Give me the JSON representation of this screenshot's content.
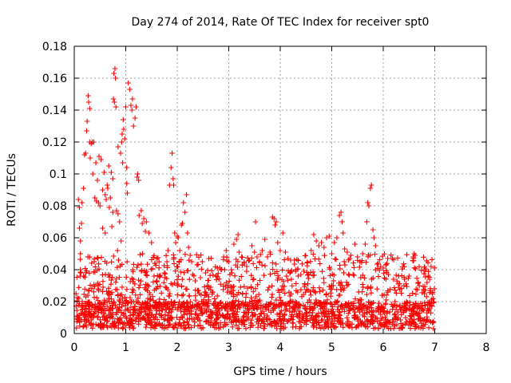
{
  "chart_data": {
    "type": "scatter",
    "title": "Day 274 of 2014, Rate Of TEC Index for receiver spt0",
    "xlabel": "GPS time / hours",
    "ylabel": "ROTI / TECUs",
    "xlim": [
      0,
      8
    ],
    "ylim": [
      0,
      0.18
    ],
    "xticks": [
      0,
      1,
      2,
      3,
      4,
      5,
      6,
      7,
      8
    ],
    "xtick_labels": [
      "0",
      "1",
      "2",
      "3",
      "4",
      "5",
      "6",
      "7",
      "8"
    ],
    "yticks": [
      0,
      0.02,
      0.04,
      0.06,
      0.08,
      0.1,
      0.12,
      0.14,
      0.16,
      0.18
    ],
    "ytick_labels": [
      "0",
      "0.02",
      "0.04",
      "0.06",
      "0.08",
      "0.1",
      "0.12",
      "0.14",
      "0.16",
      "0.18"
    ],
    "grid": true,
    "marker": "+",
    "series": [
      {
        "name": "ROTI",
        "color": "#ff0000",
        "points": [
          [
            0.05,
            0.011
          ],
          [
            0.08,
            0.084
          ],
          [
            0.1,
            0.079
          ],
          [
            0.1,
            0.066
          ],
          [
            0.12,
            0.058
          ],
          [
            0.12,
            0.05
          ],
          [
            0.12,
            0.04
          ],
          [
            0.13,
            0.038
          ],
          [
            0.14,
            0.069
          ],
          [
            0.15,
            0.082
          ],
          [
            0.18,
            0.091
          ],
          [
            0.18,
            0.036
          ],
          [
            0.2,
            0.112
          ],
          [
            0.22,
            0.113
          ],
          [
            0.24,
            0.127
          ],
          [
            0.25,
            0.133
          ],
          [
            0.27,
            0.149
          ],
          [
            0.28,
            0.145
          ],
          [
            0.3,
            0.12
          ],
          [
            0.3,
            0.141
          ],
          [
            0.31,
            0.11
          ],
          [
            0.33,
            0.119
          ],
          [
            0.35,
            0.12
          ],
          [
            0.36,
            0.1
          ],
          [
            0.38,
            0.12
          ],
          [
            0.4,
            0.085
          ],
          [
            0.42,
            0.107
          ],
          [
            0.43,
            0.083
          ],
          [
            0.45,
            0.096
          ],
          [
            0.47,
            0.082
          ],
          [
            0.48,
            0.111
          ],
          [
            0.5,
            0.08
          ],
          [
            0.52,
            0.109
          ],
          [
            0.55,
            0.066
          ],
          [
            0.55,
            0.09
          ],
          [
            0.58,
            0.101
          ],
          [
            0.6,
            0.087
          ],
          [
            0.6,
            0.063
          ],
          [
            0.62,
            0.084
          ],
          [
            0.64,
            0.093
          ],
          [
            0.65,
            0.091
          ],
          [
            0.67,
            0.105
          ],
          [
            0.68,
            0.079
          ],
          [
            0.7,
            0.085
          ],
          [
            0.72,
            0.101
          ],
          [
            0.73,
            0.067
          ],
          [
            0.75,
            0.097
          ],
          [
            0.75,
            0.076
          ],
          [
            0.76,
            0.147
          ],
          [
            0.77,
            0.163
          ],
          [
            0.78,
            0.145
          ],
          [
            0.79,
            0.166
          ],
          [
            0.8,
            0.16
          ],
          [
            0.81,
            0.142
          ],
          [
            0.82,
            0.077
          ],
          [
            0.84,
            0.052
          ],
          [
            0.85,
            0.075
          ],
          [
            0.85,
            0.117
          ],
          [
            0.86,
            0.046
          ],
          [
            0.88,
            0.07
          ],
          [
            0.9,
            0.113
          ],
          [
            0.91,
            0.058
          ],
          [
            0.92,
            0.12
          ],
          [
            0.93,
            0.125
          ],
          [
            0.94,
            0.107
          ],
          [
            0.95,
            0.134
          ],
          [
            0.96,
            0.128
          ],
          [
            0.98,
            0.122
          ],
          [
            1.0,
            0.142
          ],
          [
            1.02,
            0.104
          ],
          [
            1.02,
            0.094
          ],
          [
            1.03,
            0.088
          ],
          [
            1.05,
            0.157
          ],
          [
            1.08,
            0.153
          ],
          [
            1.1,
            0.143
          ],
          [
            1.12,
            0.14
          ],
          [
            1.13,
            0.147
          ],
          [
            1.15,
            0.13
          ],
          [
            1.18,
            0.135
          ],
          [
            1.2,
            0.142
          ],
          [
            1.22,
            0.098
          ],
          [
            1.23,
            0.1
          ],
          [
            1.25,
            0.096
          ],
          [
            1.26,
            0.074
          ],
          [
            1.3,
            0.077
          ],
          [
            1.32,
            0.069
          ],
          [
            1.35,
            0.072
          ],
          [
            1.38,
            0.064
          ],
          [
            1.4,
            0.07
          ],
          [
            1.45,
            0.063
          ],
          [
            1.5,
            0.057
          ],
          [
            1.55,
            0.036
          ],
          [
            1.6,
            0.047
          ],
          [
            1.65,
            0.036
          ],
          [
            1.75,
            0.038
          ],
          [
            1.8,
            0.045
          ],
          [
            1.82,
            0.052
          ],
          [
            1.85,
            0.093
          ],
          [
            1.88,
            0.104
          ],
          [
            1.9,
            0.113
          ],
          [
            1.92,
            0.097
          ],
          [
            1.93,
            0.093
          ],
          [
            1.95,
            0.063
          ],
          [
            1.97,
            0.057
          ],
          [
            2.0,
            0.061
          ],
          [
            2.02,
            0.06
          ],
          [
            2.05,
            0.052
          ],
          [
            2.08,
            0.068
          ],
          [
            2.1,
            0.069
          ],
          [
            2.12,
            0.082
          ],
          [
            2.15,
            0.076
          ],
          [
            2.18,
            0.087
          ],
          [
            2.2,
            0.063
          ],
          [
            2.22,
            0.054
          ],
          [
            2.25,
            0.049
          ],
          [
            2.28,
            0.045
          ],
          [
            2.3,
            0.037
          ],
          [
            2.35,
            0.033
          ],
          [
            2.45,
            0.035
          ],
          [
            2.55,
            0.038
          ],
          [
            2.65,
            0.029
          ],
          [
            2.75,
            0.036
          ],
          [
            2.85,
            0.04
          ],
          [
            2.9,
            0.048
          ],
          [
            2.95,
            0.052
          ],
          [
            3.0,
            0.045
          ],
          [
            3.05,
            0.04
          ],
          [
            3.1,
            0.056
          ],
          [
            3.15,
            0.059
          ],
          [
            3.18,
            0.062
          ],
          [
            3.2,
            0.051
          ],
          [
            3.25,
            0.048
          ],
          [
            3.3,
            0.044
          ],
          [
            3.35,
            0.042
          ],
          [
            3.4,
            0.046
          ],
          [
            3.45,
            0.055
          ],
          [
            3.5,
            0.051
          ],
          [
            3.52,
            0.07
          ],
          [
            3.55,
            0.048
          ],
          [
            3.6,
            0.045
          ],
          [
            3.65,
            0.052
          ],
          [
            3.7,
            0.059
          ],
          [
            3.75,
            0.048
          ],
          [
            3.8,
            0.051
          ],
          [
            3.85,
            0.073
          ],
          [
            3.88,
            0.072
          ],
          [
            3.9,
            0.068
          ],
          [
            3.92,
            0.07
          ],
          [
            3.95,
            0.057
          ],
          [
            4.0,
            0.052
          ],
          [
            4.05,
            0.063
          ],
          [
            4.1,
            0.051
          ],
          [
            4.15,
            0.047
          ],
          [
            4.2,
            0.046
          ],
          [
            4.3,
            0.04
          ],
          [
            4.4,
            0.037
          ],
          [
            4.6,
            0.052
          ],
          [
            4.65,
            0.062
          ],
          [
            4.7,
            0.058
          ],
          [
            4.75,
            0.055
          ],
          [
            4.8,
            0.057
          ],
          [
            4.85,
            0.054
          ],
          [
            4.9,
            0.06
          ],
          [
            4.95,
            0.061
          ],
          [
            5.0,
            0.05
          ],
          [
            5.05,
            0.057
          ],
          [
            5.1,
            0.06
          ],
          [
            5.15,
            0.074
          ],
          [
            5.18,
            0.076
          ],
          [
            5.2,
            0.07
          ],
          [
            5.22,
            0.063
          ],
          [
            5.25,
            0.053
          ],
          [
            5.3,
            0.051
          ],
          [
            5.35,
            0.047
          ],
          [
            5.45,
            0.056
          ],
          [
            5.5,
            0.048
          ],
          [
            5.55,
            0.045
          ],
          [
            5.6,
            0.05
          ],
          [
            5.65,
            0.056
          ],
          [
            5.68,
            0.07
          ],
          [
            5.7,
            0.082
          ],
          [
            5.72,
            0.08
          ],
          [
            5.75,
            0.091
          ],
          [
            5.77,
            0.093
          ],
          [
            5.8,
            0.065
          ],
          [
            5.82,
            0.06
          ],
          [
            5.85,
            0.055
          ],
          [
            5.9,
            0.044
          ],
          [
            5.95,
            0.042
          ],
          [
            6.0,
            0.041
          ],
          [
            6.05,
            0.043
          ],
          [
            6.1,
            0.037
          ],
          [
            6.2,
            0.034
          ],
          [
            6.3,
            0.036
          ],
          [
            6.4,
            0.03
          ],
          [
            6.5,
            0.036
          ],
          [
            6.58,
            0.048
          ],
          [
            6.6,
            0.05
          ],
          [
            6.62,
            0.049
          ],
          [
            6.7,
            0.03
          ],
          [
            6.8,
            0.025
          ],
          [
            6.85,
            0.032
          ],
          [
            6.9,
            0.034
          ],
          [
            6.95,
            0.025
          ]
        ],
        "dense_band": {
          "x_range": [
            0,
            7
          ],
          "y_range": [
            0.002,
            0.045
          ],
          "note": "dense cloud of points near the baseline, densest between 0.005 and 0.02"
        }
      }
    ]
  }
}
